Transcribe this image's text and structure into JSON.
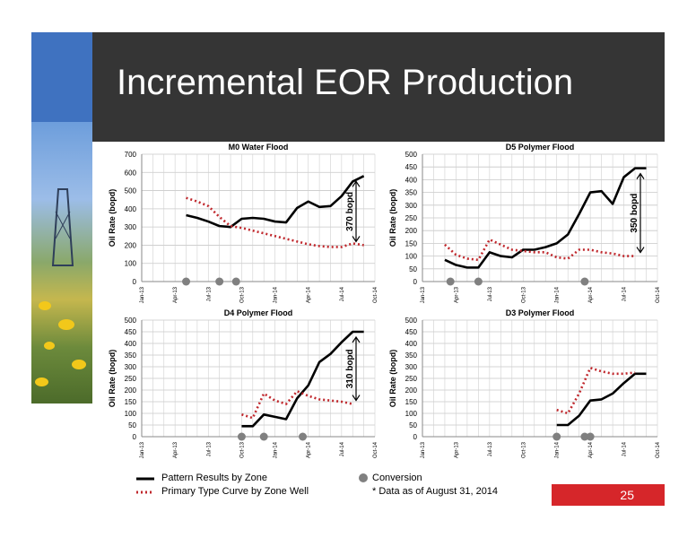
{
  "slide": {
    "title": "Incremental EOR Production",
    "page_number": "25",
    "legend": {
      "pattern": "Pattern Results by Zone",
      "primary": "Primary Type Curve by Zone Well",
      "conversion": "Conversion",
      "note": "* Data as of August 31, 2014"
    },
    "colors": {
      "header": "#353535",
      "pattern": "#000000",
      "primary": "#c0282d",
      "conversion": "#808080",
      "badge": "#d6262a"
    }
  },
  "chart_data": [
    {
      "type": "line",
      "title": "M0 Water Flood",
      "ylabel": "Oil Rate (bopd)",
      "ylim": [
        0,
        700
      ],
      "yticks": [
        0,
        100,
        200,
        300,
        400,
        500,
        600,
        700
      ],
      "x_ticks": [
        "Jan-13",
        "Apr-13",
        "Jul-13",
        "Oct-13",
        "Jan-14",
        "Apr-14",
        "Jul-14",
        "Oct-14"
      ],
      "annotation": "370 bopd",
      "series": [
        {
          "name": "Pattern Results by Zone",
          "style": "solid",
          "x": [
            4,
            5,
            6,
            7,
            8,
            9,
            10,
            11,
            12,
            13,
            14,
            15,
            16,
            17,
            18,
            19,
            20
          ],
          "y": [
            365,
            350,
            330,
            305,
            300,
            345,
            350,
            345,
            330,
            325,
            405,
            440,
            410,
            415,
            470,
            550,
            580
          ]
        },
        {
          "name": "Primary Type Curve by Zone Well",
          "style": "dotted",
          "x": [
            4,
            5,
            6,
            7,
            8,
            9,
            10,
            11,
            12,
            13,
            14,
            15,
            16,
            17,
            18,
            19,
            20
          ],
          "y": [
            460,
            440,
            415,
            355,
            305,
            295,
            280,
            265,
            250,
            235,
            220,
            205,
            195,
            190,
            190,
            210,
            200
          ]
        }
      ],
      "conversions": [
        4,
        7,
        8.5
      ]
    },
    {
      "type": "line",
      "title": "D5 Polymer Flood",
      "ylabel": "Oil Rate (bopd)",
      "ylim": [
        0,
        500
      ],
      "yticks": [
        0,
        50,
        100,
        150,
        200,
        250,
        300,
        350,
        400,
        450,
        500
      ],
      "x_ticks": [
        "Jan-13",
        "Apr-13",
        "Jul-13",
        "Oct-13",
        "Jan-14",
        "Apr-14",
        "Jul-14",
        "Oct-14"
      ],
      "annotation": "350 bopd",
      "series": [
        {
          "name": "Pattern Results by Zone",
          "style": "solid",
          "x": [
            2,
            3,
            4,
            5,
            6,
            7,
            8,
            9,
            10,
            11,
            12,
            13,
            14,
            15,
            16,
            17,
            18,
            19,
            20
          ],
          "y": [
            85,
            65,
            55,
            55,
            115,
            100,
            95,
            125,
            125,
            135,
            150,
            185,
            265,
            350,
            355,
            305,
            410,
            445,
            445
          ]
        },
        {
          "name": "Primary Type Curve by Zone Well",
          "style": "dotted",
          "x": [
            2,
            3,
            4,
            5,
            6,
            7,
            8,
            9,
            10,
            11,
            12,
            13,
            14,
            15,
            16,
            17,
            18,
            19
          ],
          "y": [
            145,
            105,
            90,
            85,
            165,
            145,
            125,
            120,
            115,
            115,
            95,
            90,
            125,
            125,
            115,
            110,
            100,
            100
          ]
        }
      ],
      "conversions": [
        2.5,
        5,
        14.5
      ]
    },
    {
      "type": "line",
      "title": "D4 Polymer Flood",
      "ylabel": "Oil Rate (bopd)",
      "ylim": [
        0,
        500
      ],
      "yticks": [
        0,
        50,
        100,
        150,
        200,
        250,
        300,
        350,
        400,
        450,
        500
      ],
      "x_ticks": [
        "Jan-13",
        "Apr-13",
        "Jul-13",
        "Oct-13",
        "Jan-14",
        "Apr-14",
        "Jul-14",
        "Oct-14"
      ],
      "annotation": "310 bopd",
      "series": [
        {
          "name": "Pattern Results by Zone",
          "style": "solid",
          "x": [
            9,
            10,
            11,
            12,
            13,
            14,
            15,
            16,
            17,
            18,
            19,
            20
          ],
          "y": [
            45,
            45,
            95,
            85,
            75,
            165,
            220,
            320,
            355,
            405,
            450,
            450
          ]
        },
        {
          "name": "Primary Type Curve by Zone Well",
          "style": "dotted",
          "x": [
            9,
            10,
            11,
            12,
            13,
            14,
            15,
            16,
            17,
            18,
            19
          ],
          "y": [
            95,
            80,
            185,
            155,
            140,
            195,
            175,
            160,
            155,
            150,
            140
          ]
        }
      ],
      "conversions": [
        9,
        11,
        14.5
      ]
    },
    {
      "type": "line",
      "title": "D3 Polymer Flood",
      "ylabel": "Oil Rate (bopd)",
      "ylim": [
        0,
        500
      ],
      "yticks": [
        0,
        50,
        100,
        150,
        200,
        250,
        300,
        350,
        400,
        450,
        500
      ],
      "x_ticks": [
        "Jan-13",
        "Apr-13",
        "Jul-13",
        "Oct-13",
        "Jan-14",
        "Apr-14",
        "Jul-14",
        "Oct-14"
      ],
      "annotation": "",
      "series": [
        {
          "name": "Pattern Results by Zone",
          "style": "solid",
          "x": [
            12,
            13,
            14,
            15,
            16,
            17,
            18,
            19,
            20
          ],
          "y": [
            50,
            50,
            90,
            155,
            160,
            185,
            230,
            270,
            270
          ]
        },
        {
          "name": "Primary Type Curve by Zone Well",
          "style": "dotted",
          "x": [
            12,
            13,
            14,
            15,
            16,
            17,
            18,
            19
          ],
          "y": [
            115,
            100,
            185,
            295,
            280,
            270,
            270,
            275
          ]
        }
      ],
      "conversions": [
        12,
        14.5,
        15
      ]
    }
  ]
}
